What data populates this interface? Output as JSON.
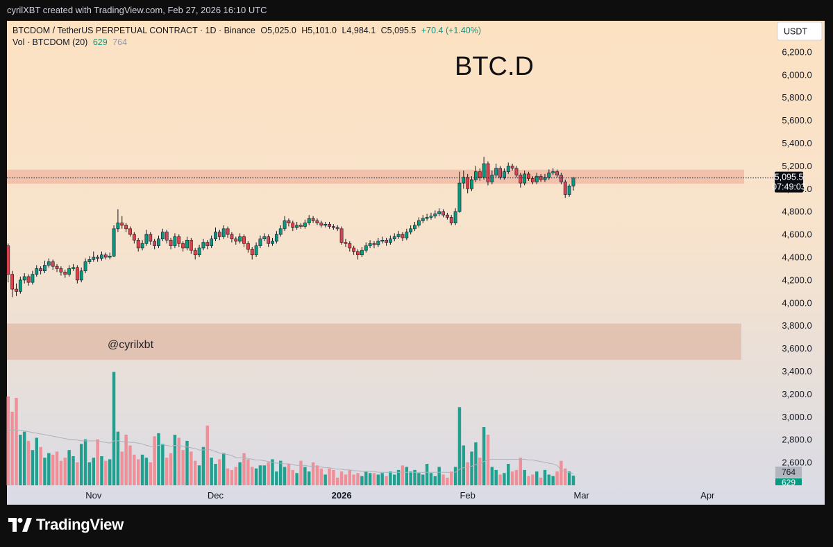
{
  "header": {
    "credit": "cyrilXBT created with TradingView.com, Feb 27, 2026 16:10 UTC"
  },
  "footer": {
    "brand": "TradingView"
  },
  "chart_data": {
    "type": "candlestick",
    "legend": {
      "symbol": "BTCDOM / TetherUS PERPETUAL CONTRACT · 1D · Binance",
      "ohlc": [
        "O5,025.0",
        "H5,101.0",
        "L4,984.1",
        "C5,095.5"
      ],
      "change": "+70.4 (+1.40%)",
      "volume_title": "Vol · BTCDOM (20)"
    },
    "currency_button": "USDT",
    "annotations": [
      "BTC.D",
      "@cyrilxbt"
    ],
    "zones": [
      [
        5045,
        5167
      ],
      [
        3500,
        3818
      ]
    ],
    "last_price_label": "5,095.5",
    "countdown": "07:49:03",
    "up_color": "#089981",
    "down_color": "#d9434f",
    "volume_up_color": "#22a08f",
    "volume_down_color": "#ef9099",
    "ma_color": "#aeb0bb",
    "xlim": [
      -0.3,
      181
    ],
    "xticks": [
      {
        "value": 21,
        "label": "Nov"
      },
      {
        "value": 51,
        "label": "Dec"
      },
      {
        "value": 82,
        "label": "2026"
      },
      {
        "value": 113,
        "label": "Feb"
      },
      {
        "value": 141,
        "label": "Mar"
      },
      {
        "value": 172,
        "label": "Apr"
      }
    ],
    "ylim": [
      2400,
      6473
    ],
    "yticks": [
      {
        "value": 2600,
        "label": "2,600.0"
      },
      {
        "value": 2800,
        "label": "2,800.0"
      },
      {
        "value": 3000,
        "label": "3,000.0"
      },
      {
        "value": 3200,
        "label": "3,200.0"
      },
      {
        "value": 3400,
        "label": "3,400.0"
      },
      {
        "value": 3600,
        "label": "3,600.0"
      },
      {
        "value": 3800,
        "label": "3,800.0"
      },
      {
        "value": 4000,
        "label": "4,000.0"
      },
      {
        "value": 4200,
        "label": "4,200.0"
      },
      {
        "value": 4400,
        "label": "4,400.0"
      },
      {
        "value": 4600,
        "label": "4,600.0"
      },
      {
        "value": 4800,
        "label": "4,800.0"
      },
      {
        "value": 5000,
        "label": "5,000.0"
      },
      {
        "value": 5200,
        "label": "5,200.0"
      },
      {
        "value": 5400,
        "label": "5,400.0"
      },
      {
        "value": 5600,
        "label": "5,600.0"
      },
      {
        "value": 5800,
        "label": "5,800.0"
      },
      {
        "value": 6000,
        "label": "6,000.0"
      },
      {
        "value": 6200,
        "label": "6,200.0"
      }
    ],
    "vol_ylim": [
      0,
      7600
    ],
    "candles": [
      [
        4500,
        4520,
        4180,
        4250
      ],
      [
        4250,
        4280,
        4050,
        4120
      ],
      [
        4120,
        4170,
        4060,
        4100
      ],
      [
        4100,
        4230,
        4080,
        4200
      ],
      [
        4200,
        4260,
        4170,
        4230
      ],
      [
        4230,
        4250,
        4150,
        4180
      ],
      [
        4180,
        4280,
        4160,
        4250
      ],
      [
        4250,
        4330,
        4230,
        4300
      ],
      [
        4300,
        4320,
        4250,
        4280
      ],
      [
        4280,
        4370,
        4260,
        4330
      ],
      [
        4330,
        4390,
        4310,
        4360
      ],
      [
        4360,
        4380,
        4290,
        4320
      ],
      [
        4320,
        4340,
        4270,
        4300
      ],
      [
        4300,
        4320,
        4240,
        4270
      ],
      [
        4270,
        4290,
        4220,
        4250
      ],
      [
        4250,
        4330,
        4230,
        4300
      ],
      [
        4300,
        4340,
        4280,
        4310
      ],
      [
        4310,
        4330,
        4170,
        4200
      ],
      [
        4200,
        4310,
        4180,
        4280
      ],
      [
        4280,
        4390,
        4260,
        4360
      ],
      [
        4360,
        4410,
        4340,
        4380
      ],
      [
        4380,
        4450,
        4360,
        4400
      ],
      [
        4400,
        4420,
        4360,
        4390
      ],
      [
        4390,
        4450,
        4370,
        4420
      ],
      [
        4420,
        4440,
        4380,
        4400
      ],
      [
        4400,
        4440,
        4380,
        4410
      ],
      [
        4410,
        4680,
        4400,
        4650
      ],
      [
        4650,
        4820,
        4620,
        4700
      ],
      [
        4700,
        4760,
        4650,
        4680
      ],
      [
        4680,
        4700,
        4620,
        4650
      ],
      [
        4650,
        4670,
        4580,
        4600
      ],
      [
        4600,
        4620,
        4520,
        4550
      ],
      [
        4550,
        4570,
        4450,
        4480
      ],
      [
        4480,
        4550,
        4460,
        4520
      ],
      [
        4520,
        4640,
        4500,
        4600
      ],
      [
        4600,
        4620,
        4510,
        4540
      ],
      [
        4540,
        4560,
        4470,
        4500
      ],
      [
        4500,
        4590,
        4480,
        4560
      ],
      [
        4560,
        4650,
        4540,
        4620
      ],
      [
        4620,
        4640,
        4520,
        4550
      ],
      [
        4550,
        4570,
        4470,
        4500
      ],
      [
        4500,
        4610,
        4480,
        4580
      ],
      [
        4580,
        4600,
        4490,
        4520
      ],
      [
        4520,
        4540,
        4450,
        4480
      ],
      [
        4480,
        4580,
        4460,
        4550
      ],
      [
        4550,
        4570,
        4430,
        4460
      ],
      [
        4460,
        4480,
        4380,
        4420
      ],
      [
        4420,
        4510,
        4400,
        4480
      ],
      [
        4480,
        4560,
        4460,
        4530
      ],
      [
        4530,
        4550,
        4470,
        4500
      ],
      [
        4500,
        4590,
        4480,
        4560
      ],
      [
        4560,
        4660,
        4540,
        4620
      ],
      [
        4620,
        4640,
        4550,
        4580
      ],
      [
        4580,
        4680,
        4560,
        4650
      ],
      [
        4650,
        4670,
        4570,
        4600
      ],
      [
        4600,
        4620,
        4530,
        4560
      ],
      [
        4560,
        4580,
        4510,
        4540
      ],
      [
        4540,
        4610,
        4520,
        4580
      ],
      [
        4580,
        4600,
        4490,
        4520
      ],
      [
        4520,
        4540,
        4440,
        4470
      ],
      [
        4470,
        4490,
        4380,
        4420
      ],
      [
        4420,
        4530,
        4400,
        4500
      ],
      [
        4500,
        4590,
        4480,
        4560
      ],
      [
        4560,
        4610,
        4540,
        4580
      ],
      [
        4580,
        4600,
        4490,
        4520
      ],
      [
        4520,
        4570,
        4500,
        4540
      ],
      [
        4540,
        4630,
        4520,
        4600
      ],
      [
        4600,
        4680,
        4580,
        4650
      ],
      [
        4650,
        4760,
        4630,
        4720
      ],
      [
        4720,
        4740,
        4670,
        4700
      ],
      [
        4700,
        4720,
        4630,
        4660
      ],
      [
        4660,
        4710,
        4640,
        4680
      ],
      [
        4680,
        4700,
        4650,
        4670
      ],
      [
        4670,
        4730,
        4650,
        4700
      ],
      [
        4700,
        4770,
        4680,
        4740
      ],
      [
        4740,
        4760,
        4700,
        4720
      ],
      [
        4720,
        4740,
        4680,
        4700
      ],
      [
        4700,
        4720,
        4660,
        4680
      ],
      [
        4680,
        4710,
        4660,
        4690
      ],
      [
        4690,
        4710,
        4650,
        4670
      ],
      [
        4670,
        4690,
        4640,
        4660
      ],
      [
        4660,
        4680,
        4630,
        4650
      ],
      [
        4650,
        4670,
        4510,
        4530
      ],
      [
        4530,
        4560,
        4490,
        4520
      ],
      [
        4520,
        4540,
        4450,
        4480
      ],
      [
        4480,
        4500,
        4420,
        4450
      ],
      [
        4450,
        4470,
        4380,
        4420
      ],
      [
        4420,
        4490,
        4400,
        4460
      ],
      [
        4460,
        4530,
        4440,
        4500
      ],
      [
        4500,
        4550,
        4480,
        4520
      ],
      [
        4520,
        4540,
        4480,
        4510
      ],
      [
        4510,
        4570,
        4490,
        4540
      ],
      [
        4540,
        4580,
        4520,
        4550
      ],
      [
        4550,
        4570,
        4500,
        4530
      ],
      [
        4530,
        4590,
        4510,
        4560
      ],
      [
        4560,
        4610,
        4540,
        4580
      ],
      [
        4580,
        4630,
        4560,
        4600
      ],
      [
        4600,
        4620,
        4540,
        4570
      ],
      [
        4570,
        4650,
        4550,
        4620
      ],
      [
        4620,
        4680,
        4600,
        4650
      ],
      [
        4650,
        4710,
        4630,
        4680
      ],
      [
        4680,
        4750,
        4660,
        4720
      ],
      [
        4720,
        4770,
        4700,
        4740
      ],
      [
        4740,
        4780,
        4720,
        4750
      ],
      [
        4750,
        4790,
        4730,
        4760
      ],
      [
        4760,
        4810,
        4740,
        4780
      ],
      [
        4780,
        4830,
        4760,
        4800
      ],
      [
        4800,
        4820,
        4750,
        4770
      ],
      [
        4770,
        4790,
        4730,
        4750
      ],
      [
        4750,
        4770,
        4680,
        4700
      ],
      [
        4700,
        4830,
        4680,
        4800
      ],
      [
        4800,
        5150,
        4790,
        5050
      ],
      [
        5050,
        5160,
        5000,
        5100
      ],
      [
        5100,
        5130,
        4960,
        5000
      ],
      [
        5000,
        5110,
        4980,
        5080
      ],
      [
        5080,
        5200,
        5060,
        5150
      ],
      [
        5150,
        5180,
        5070,
        5100
      ],
      [
        5100,
        5280,
        5080,
        5220
      ],
      [
        5220,
        5240,
        5030,
        5060
      ],
      [
        5060,
        5160,
        5040,
        5120
      ],
      [
        5120,
        5220,
        5100,
        5180
      ],
      [
        5180,
        5200,
        5080,
        5100
      ],
      [
        5100,
        5180,
        5080,
        5150
      ],
      [
        5150,
        5230,
        5130,
        5200
      ],
      [
        5200,
        5220,
        5160,
        5180
      ],
      [
        5180,
        5200,
        5100,
        5120
      ],
      [
        5120,
        5140,
        5010,
        5050
      ],
      [
        5050,
        5160,
        5030,
        5130
      ],
      [
        5130,
        5150,
        5070,
        5090
      ],
      [
        5090,
        5110,
        5040,
        5060
      ],
      [
        5060,
        5140,
        5040,
        5110
      ],
      [
        5110,
        5130,
        5060,
        5080
      ],
      [
        5080,
        5130,
        5060,
        5100
      ],
      [
        5100,
        5170,
        5080,
        5140
      ],
      [
        5140,
        5180,
        5120,
        5150
      ],
      [
        5150,
        5170,
        5100,
        5120
      ],
      [
        5120,
        5140,
        5040,
        5060
      ],
      [
        5060,
        5080,
        4920,
        4950
      ],
      [
        4950,
        5040,
        4930,
        5025
      ],
      [
        5025,
        5101,
        4984.1,
        5095.5
      ]
    ],
    "volume": [
      5800,
      4800,
      5700,
      3300,
      3500,
      2900,
      2300,
      3100,
      2500,
      1800,
      2100,
      2000,
      2200,
      1600,
      1800,
      2300,
      1900,
      1500,
      2700,
      3000,
      1500,
      1800,
      3000,
      1900,
      1600,
      1700,
      7400,
      3500,
      2200,
      3300,
      2600,
      2000,
      1700,
      2000,
      1800,
      1500,
      3200,
      3400,
      2700,
      1800,
      2100,
      3300,
      3100,
      2300,
      2900,
      2200,
      1600,
      1300,
      2500,
      3900,
      1800,
      1400,
      1700,
      2100,
      1100,
      1000,
      1200,
      1500,
      2100,
      1700,
      1200,
      1100,
      1300,
      1300,
      1500,
      1700,
      900,
      1600,
      1200,
      1400,
      1000,
      800,
      1600,
      1200,
      900,
      1500,
      1300,
      1100,
      700,
      1100,
      1000,
      500,
      900,
      700,
      1000,
      700,
      800,
      600,
      900,
      800,
      800,
      700,
      800,
      600,
      900,
      700,
      1000,
      1300,
      1200,
      900,
      1000,
      800,
      700,
      1400,
      800,
      600,
      1200,
      700,
      500,
      900,
      1200,
      5100,
      2600,
      1500,
      2200,
      2800,
      1800,
      3800,
      3300,
      1200,
      1000,
      700,
      800,
      1400,
      900,
      1000,
      1800,
      1000,
      600,
      700,
      900,
      500,
      1000,
      700,
      600,
      900,
      1600,
      1100,
      900,
      629
    ],
    "volume_ma": [
      3600,
      3600,
      3600,
      3600,
      3550,
      3500,
      3450,
      3400,
      3350,
      3300,
      3250,
      3200,
      3150,
      3100,
      3050,
      3000,
      3000,
      2950,
      2900,
      2900,
      2900,
      2900,
      2900,
      2850,
      2800,
      2750,
      2900,
      2900,
      2850,
      2850,
      2800,
      2800,
      2750,
      2700,
      2600,
      2550,
      2550,
      2600,
      2650,
      2600,
      2550,
      2600,
      2600,
      2550,
      2500,
      2450,
      2400,
      2300,
      2300,
      2350,
      2300,
      2200,
      2100,
      2050,
      2000,
      1950,
      1800,
      1800,
      1800,
      1750,
      1700,
      1650,
      1650,
      1600,
      1550,
      1500,
      1450,
      1450,
      1400,
      1400,
      1350,
      1300,
      1300,
      1300,
      1250,
      1250,
      1200,
      1200,
      1150,
      1150,
      1100,
      1050,
      1050,
      1000,
      1000,
      950,
      950,
      900,
      900,
      900,
      900,
      850,
      850,
      850,
      850,
      850,
      850,
      850,
      850,
      850,
      850,
      850,
      850,
      850,
      850,
      850,
      850,
      850,
      850,
      850,
      850,
      1050,
      1150,
      1200,
      1250,
      1350,
      1400,
      1550,
      1650,
      1700,
      1700,
      1700,
      1700,
      1700,
      1700,
      1700,
      1700,
      1700,
      1650,
      1650,
      1600,
      1550,
      1500,
      1450,
      1400,
      1300,
      1000,
      900,
      820,
      764
    ]
  }
}
